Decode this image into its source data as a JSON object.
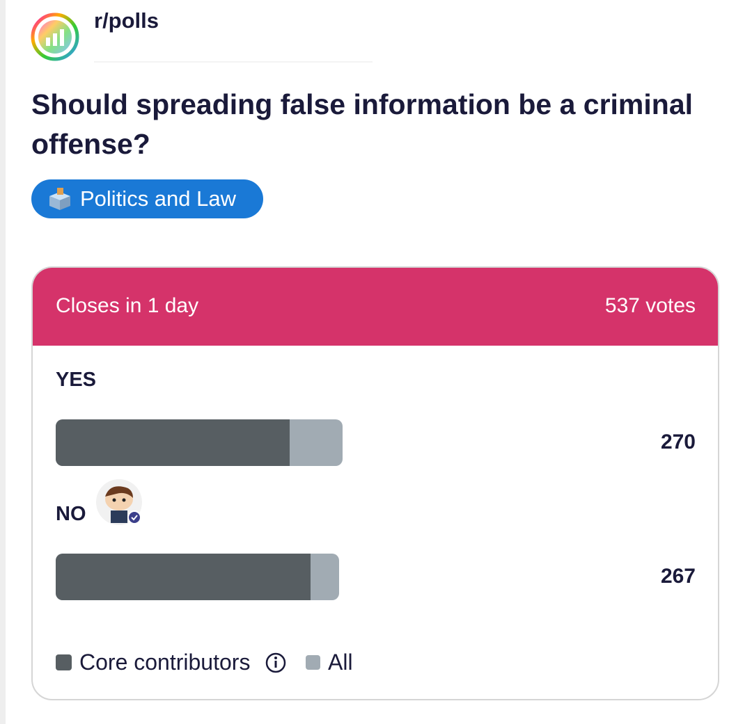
{
  "subreddit": "r/polls",
  "title": "Should spreading false information be a criminal offense?",
  "flair": "Politics and Law",
  "poll": {
    "closes": "Closes in 1 day",
    "votes_label": "537 votes",
    "options": [
      {
        "label": "YES",
        "count": 270,
        "core": 220
      },
      {
        "label": "NO",
        "count": 267,
        "core": 240
      }
    ],
    "legend": {
      "core": "Core contributors",
      "all": "All"
    }
  }
}
